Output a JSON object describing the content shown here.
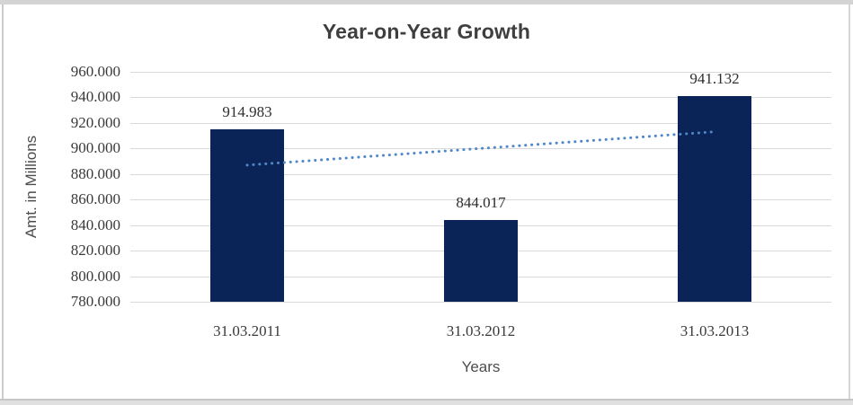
{
  "window": {
    "background": "#ffffff",
    "edge_strip_color": "#d4d4d4",
    "edge_line_color": "#cccccc"
  },
  "chart_data": {
    "type": "bar",
    "title": "Year-on-Year Growth",
    "categories": [
      "31.03.2011",
      "31.03.2012",
      "31.03.2013"
    ],
    "values": [
      914.983,
      844.017,
      941.132
    ],
    "value_labels": [
      "914.983",
      "844.017",
      "941.132"
    ],
    "xlabel": "Years",
    "ylabel": "Amt. in Millions",
    "ylim": [
      780,
      960
    ],
    "ytick_step": 20,
    "ytick_labels": [
      "960.000",
      "940.000",
      "920.000",
      "900.000",
      "880.000",
      "860.000",
      "840.000",
      "820.000",
      "800.000",
      "780.000"
    ],
    "grid": "horizontal-only",
    "legend": "none",
    "colors": {
      "bar": "#0a2458",
      "gridline": "#d9d9d9",
      "title": "#3f3f3f",
      "tick_labels": "#3a3a3a",
      "axis_titles": "#4d4d4d",
      "trendline": "#4f87c7"
    },
    "trendline": {
      "shape": "linear",
      "style": "dotted",
      "start_value": 886.97,
      "end_value": 913.12
    }
  }
}
